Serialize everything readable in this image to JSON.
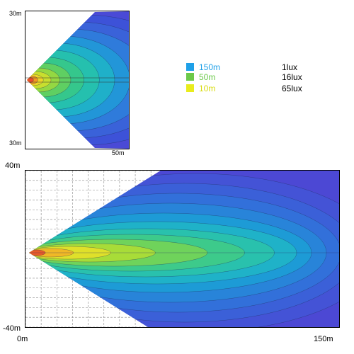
{
  "colors": {
    "dist_150": "#1ea0e8",
    "dist_50": "#6cc94a",
    "dist_10": "#e9ec1c"
  },
  "legend": [
    {
      "distance": "150m",
      "lux": "1lux",
      "color": "#1ea0e8"
    },
    {
      "distance": "50m",
      "lux": "16lux",
      "color": "#6cc94a"
    },
    {
      "distance": "10m",
      "lux": "65lux",
      "color": "#e9ec1c"
    }
  ],
  "chart_data": [
    {
      "type": "heatmap",
      "title": "",
      "xlabel": "",
      "ylabel": "",
      "xlim": [
        0,
        50
      ],
      "ylim": [
        -30,
        30
      ],
      "tick_labels": {
        "y_top": "30m",
        "y_bottom": "30m",
        "x_right": "50m"
      },
      "beam_half_angle_deg": 45,
      "grid": false,
      "legend_position": "right"
    },
    {
      "type": "heatmap",
      "title": "",
      "xlabel": "",
      "ylabel": "",
      "xlim": [
        0,
        150
      ],
      "ylim": [
        -40,
        40
      ],
      "tick_labels": {
        "y_top": "40m",
        "y_bottom": "-40m",
        "x_left": "0m",
        "x_right": "150m"
      },
      "beam_half_angle_deg": 32,
      "grid": true,
      "grid_step_x": 7.5,
      "grid_step_y": 5
    }
  ]
}
